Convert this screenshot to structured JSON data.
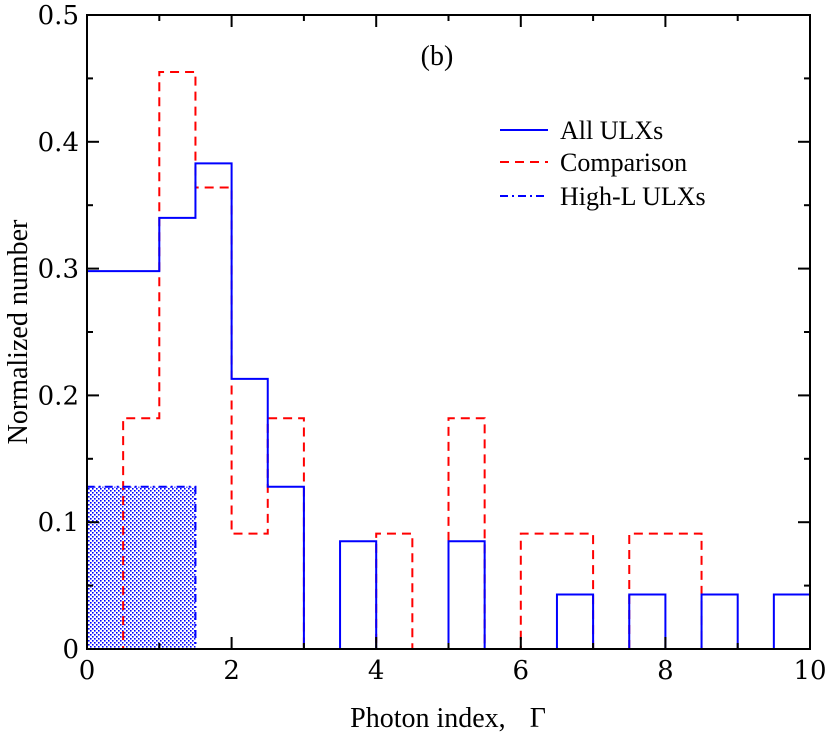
{
  "chart_data": {
    "type": "histogram",
    "panel_label": "(b)",
    "xlabel": "Photon index,",
    "xlabel_symbol": "Γ",
    "ylabel": "Normalized number",
    "xlim": [
      0,
      10
    ],
    "ylim": [
      0,
      0.5
    ],
    "xticks": [
      0,
      2,
      4,
      6,
      8,
      10
    ],
    "yticks": [
      0,
      0.1,
      0.2,
      0.3,
      0.4,
      0.5
    ],
    "xtick_labels": [
      "0",
      "2",
      "4",
      "6",
      "8",
      "10"
    ],
    "ytick_labels": [
      "0",
      "0.1",
      "0.2",
      "0.3",
      "0.4",
      "0.5"
    ],
    "legend_position": "upper-right",
    "bin_width": 0.5,
    "bin_edges": [
      0,
      0.5,
      1,
      1.5,
      2,
      2.5,
      3,
      3.5,
      4,
      4.5,
      5,
      5.5,
      6,
      6.5,
      7,
      7.5,
      8,
      8.5,
      9,
      9.5,
      10
    ],
    "series": [
      {
        "name": "All ULXs",
        "color": "#0000ff",
        "style": "solid",
        "values": [
          0.298,
          0.298,
          0.34,
          0.383,
          0.213,
          0.128,
          0,
          0.085,
          0,
          0,
          0.085,
          0,
          0,
          0.043,
          0,
          0.043,
          0,
          0.043,
          0,
          0.043
        ]
      },
      {
        "name": "Comparison",
        "color": "#ff0000",
        "style": "dashed",
        "values": [
          0,
          0.182,
          0.455,
          0.364,
          0.091,
          0.182,
          0,
          0,
          0.091,
          0,
          0.182,
          0,
          0.091,
          0.091,
          0,
          0.091,
          0.091,
          0,
          0,
          0
        ]
      },
      {
        "name": "High-L ULXs",
        "color": "#0000ff",
        "style": "dash-dot",
        "fill": "dotted",
        "values": [
          0.128,
          0.128,
          0.128,
          0,
          0,
          0,
          0,
          0,
          0,
          0,
          0,
          0,
          0,
          0,
          0,
          0,
          0,
          0,
          0,
          0
        ]
      }
    ]
  }
}
